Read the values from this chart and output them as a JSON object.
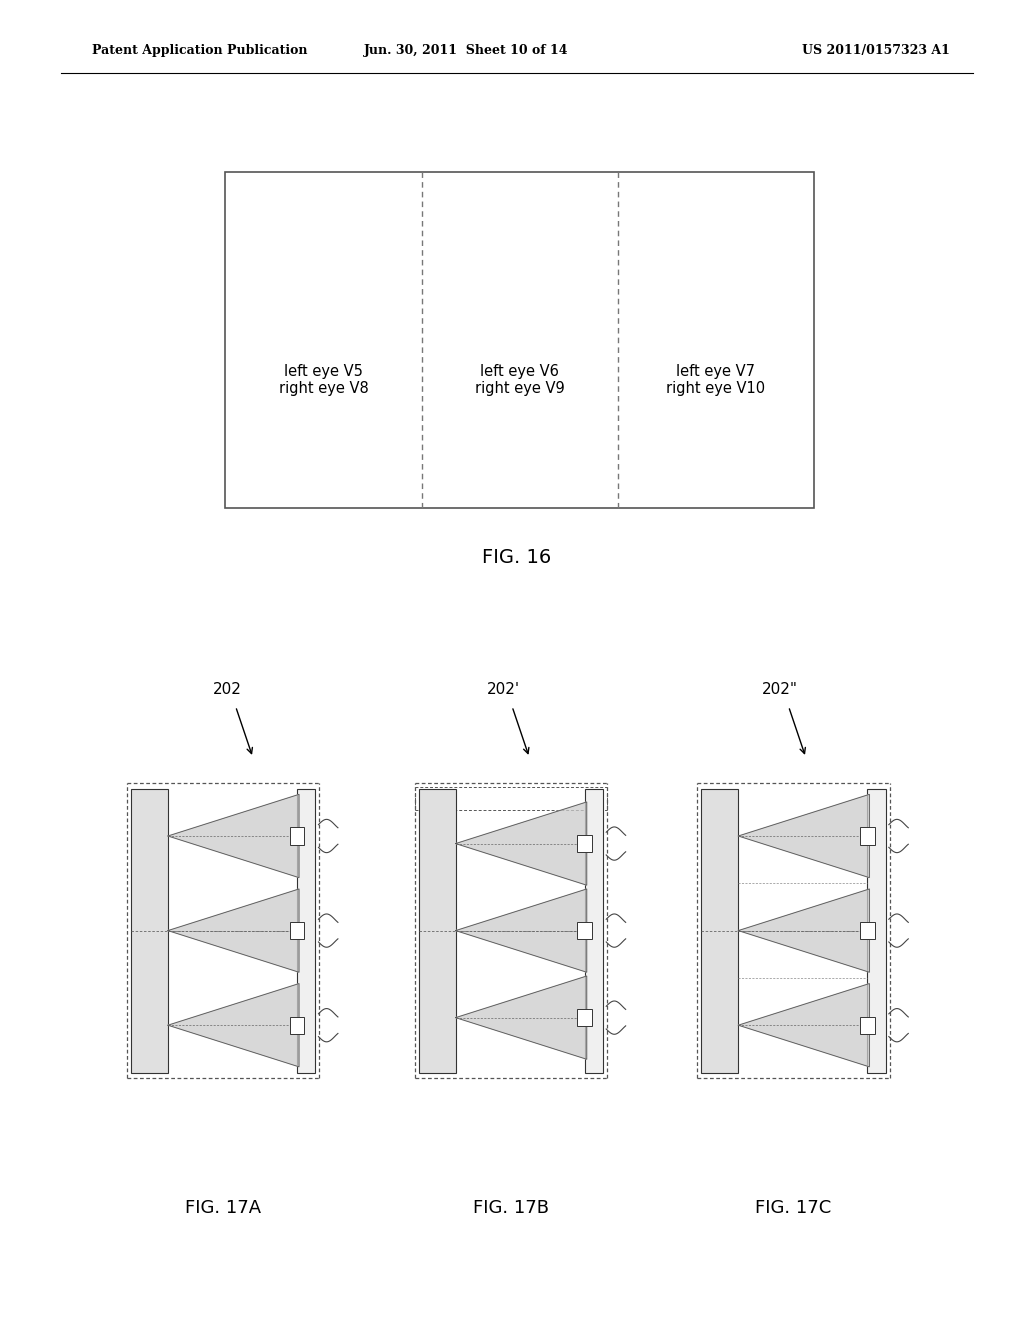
{
  "bg_color": "#ffffff",
  "header_text": "Patent Application Publication",
  "header_date": "Jun. 30, 2011  Sheet 10 of 14",
  "header_patent": "US 2011/0157323 A1",
  "fig16_title": "FIG. 16",
  "fig16_cells": [
    {
      "label": "left eye V5\nright eye V8"
    },
    {
      "label": "left eye V6\nright eye V9"
    },
    {
      "label": "left eye V7\nright eye V10"
    }
  ],
  "fig17_labels": [
    "202",
    "202'",
    "202\""
  ],
  "fig17a_title": "FIG. 17A",
  "fig17b_title": "FIG. 17B",
  "fig17c_title": "FIG. 17C"
}
